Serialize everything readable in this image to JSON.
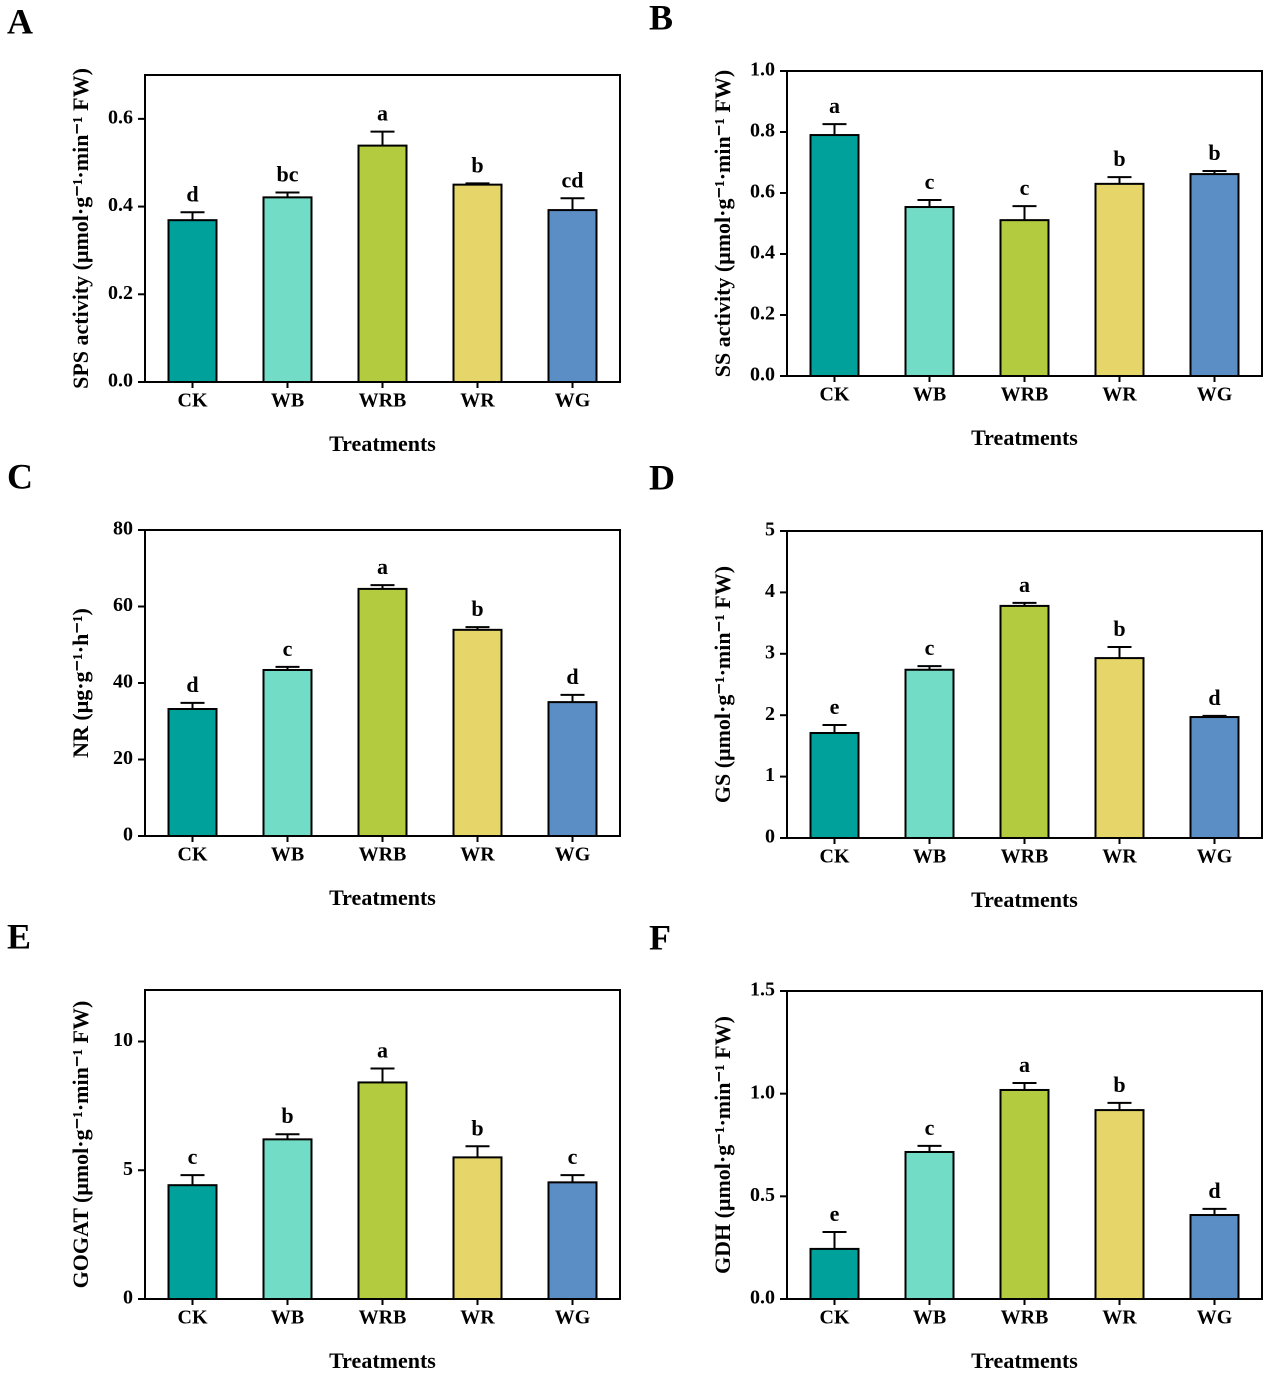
{
  "chart_data": [
    {
      "type": "bar",
      "panel": "A",
      "ylabel": "SPS activity (μmol·g⁻¹·min⁻¹ FW)",
      "xlabel": "Treatments",
      "categories": [
        "CK",
        "WB",
        "WRB",
        "WR",
        "WG"
      ],
      "values": [
        0.369,
        0.421,
        0.539,
        0.45,
        0.392
      ],
      "errors": [
        0.018,
        0.011,
        0.032,
        0.003,
        0.027
      ],
      "letters": [
        "d",
        "bc",
        "a",
        "b",
        "cd"
      ],
      "colors": [
        "#00a19a",
        "#73dcc6",
        "#b3cc3f",
        "#e6d669",
        "#5b8ec5"
      ],
      "ylim": [
        0,
        0.7
      ],
      "yticks": [
        {
          "value": 0,
          "label": "0.0"
        },
        0.2,
        0.4,
        0.6
      ]
    },
    {
      "type": "bar",
      "panel": "B",
      "ylabel": "SS activity (μmol·g⁻¹·min⁻¹ FW)",
      "xlabel": "Treatments",
      "categories": [
        "CK",
        "WB",
        "WRB",
        "WR",
        "WG"
      ],
      "values": [
        0.79,
        0.554,
        0.511,
        0.63,
        0.662
      ],
      "errors": [
        0.036,
        0.023,
        0.046,
        0.022,
        0.01
      ],
      "letters": [
        "a",
        "c",
        "c",
        "b",
        "b"
      ],
      "colors": [
        "#00a19a",
        "#73dcc6",
        "#b3cc3f",
        "#e6d669",
        "#5b8ec5"
      ],
      "ylim": [
        0,
        1
      ],
      "yticks": [
        {
          "value": 0,
          "label": "0.0"
        },
        0.2,
        0.4,
        0.6,
        0.8,
        {
          "value": 1,
          "label": "1.0"
        }
      ]
    },
    {
      "type": "bar",
      "panel": "C",
      "ylabel": "NR (μg·g⁻¹·h⁻¹)",
      "xlabel": "Treatments",
      "categories": [
        "CK",
        "WB",
        "WRB",
        "WR",
        "WG"
      ],
      "values": [
        33.2,
        43.4,
        64.6,
        53.9,
        35.0
      ],
      "errors": [
        1.6,
        0.8,
        1.0,
        0.7,
        1.9
      ],
      "letters": [
        "d",
        "c",
        "a",
        "b",
        "d"
      ],
      "colors": [
        "#00a19a",
        "#73dcc6",
        "#b3cc3f",
        "#e6d669",
        "#5b8ec5"
      ],
      "ylim": [
        0,
        80
      ],
      "yticks": [
        0,
        20,
        40,
        60,
        80
      ]
    },
    {
      "type": "bar",
      "panel": "D",
      "ylabel": "GS (μmol·g⁻¹·min⁻¹ FW)",
      "xlabel": "Treatments",
      "categories": [
        "CK",
        "WB",
        "WRB",
        "WR",
        "WG"
      ],
      "values": [
        1.71,
        2.74,
        3.78,
        2.93,
        1.97
      ],
      "errors": [
        0.13,
        0.06,
        0.05,
        0.18,
        0.02
      ],
      "letters": [
        "e",
        "c",
        "a",
        "b",
        "d"
      ],
      "colors": [
        "#00a19a",
        "#73dcc6",
        "#b3cc3f",
        "#e6d669",
        "#5b8ec5"
      ],
      "ylim": [
        0,
        5
      ],
      "yticks": [
        0,
        1,
        2,
        3,
        4,
        5
      ]
    },
    {
      "type": "bar",
      "panel": "E",
      "ylabel": "GOGAT (μmol·g⁻¹·min⁻¹ FW)",
      "xlabel": "Treatments",
      "categories": [
        "CK",
        "WB",
        "WRB",
        "WR",
        "WG"
      ],
      "values": [
        4.42,
        6.2,
        8.41,
        5.5,
        4.53
      ],
      "errors": [
        0.39,
        0.2,
        0.54,
        0.43,
        0.28
      ],
      "letters": [
        "c",
        "b",
        "a",
        "b",
        "c"
      ],
      "colors": [
        "#00a19a",
        "#73dcc6",
        "#b3cc3f",
        "#e6d669",
        "#5b8ec5"
      ],
      "ylim": [
        0,
        12
      ],
      "yticks": [
        0,
        5,
        10
      ]
    },
    {
      "type": "bar",
      "panel": "F",
      "ylabel": "GDH (μmol·g⁻¹·min⁻¹ FW)",
      "xlabel": "Treatments",
      "categories": [
        "CK",
        "WB",
        "WRB",
        "WR",
        "WG"
      ],
      "values": [
        0.244,
        0.716,
        1.018,
        0.92,
        0.409
      ],
      "errors": [
        0.082,
        0.03,
        0.034,
        0.035,
        0.03
      ],
      "letters": [
        "e",
        "c",
        "a",
        "b",
        "d"
      ],
      "colors": [
        "#00a19a",
        "#73dcc6",
        "#b3cc3f",
        "#e6d669",
        "#5b8ec5"
      ],
      "ylim": [
        0,
        1.5
      ],
      "yticks": [
        {
          "value": 0,
          "label": "0.0"
        },
        0.5,
        {
          "value": 1,
          "label": "1.0"
        },
        1.5
      ]
    }
  ]
}
